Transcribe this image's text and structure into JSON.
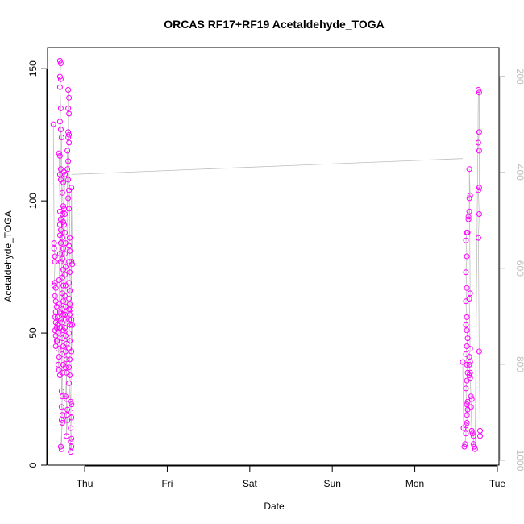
{
  "chart_data": {
    "type": "scatter",
    "title": "ORCAS RF17+RF19 Acetaldehyde_TOGA",
    "xlabel": "Date",
    "ylabel": "Acetaldehyde_TOGA",
    "x_ticks": [
      "Thu",
      "Fri",
      "Sat",
      "Sun",
      "Mon",
      "Tue"
    ],
    "xlim_days": [
      -0.45,
      5.02
    ],
    "ylim": [
      0,
      158
    ],
    "y_ticks": [
      0,
      50,
      100,
      150
    ],
    "y2_ticks": [
      200,
      400,
      600,
      800,
      1000
    ],
    "y2lim": [
      1010,
      140
    ],
    "grid": false,
    "point_color": "#ff00ff",
    "line_color": "#bdbdbd",
    "series": [
      {
        "values": [
          [
            -0.38,
            129
          ],
          [
            -0.37,
            84
          ],
          [
            -0.37,
            82
          ],
          [
            -0.36,
            79
          ],
          [
            -0.36,
            77
          ],
          [
            -0.37,
            68
          ],
          [
            -0.36,
            69
          ],
          [
            -0.35,
            67
          ],
          [
            -0.36,
            64
          ],
          [
            -0.35,
            62
          ],
          [
            -0.34,
            60
          ],
          [
            -0.35,
            58
          ],
          [
            -0.36,
            56
          ],
          [
            -0.35,
            54
          ],
          [
            -0.34,
            52
          ],
          [
            -0.36,
            51
          ],
          [
            -0.35,
            49
          ],
          [
            -0.34,
            47
          ],
          [
            -0.35,
            45
          ],
          [
            -0.33,
            56
          ],
          [
            -0.33,
            53
          ],
          [
            -0.32,
            50
          ],
          [
            -0.33,
            47
          ],
          [
            -0.32,
            44
          ],
          [
            -0.31,
            41
          ],
          [
            -0.32,
            38
          ],
          [
            -0.31,
            36
          ],
          [
            -0.3,
            34
          ],
          [
            -0.31,
            61
          ],
          [
            -0.3,
            58
          ],
          [
            -0.29,
            55
          ],
          [
            -0.3,
            52
          ],
          [
            -0.31,
            70
          ],
          [
            -0.3,
            96
          ],
          [
            -0.29,
            93
          ],
          [
            -0.3,
            91
          ],
          [
            -0.29,
            89
          ],
          [
            -0.3,
            87
          ],
          [
            -0.29,
            84
          ],
          [
            -0.3,
            80
          ],
          [
            -0.29,
            77
          ],
          [
            -0.31,
            118
          ],
          [
            -0.3,
            117
          ],
          [
            -0.29,
            112
          ],
          [
            -0.3,
            110
          ],
          [
            -0.29,
            108
          ],
          [
            -0.3,
            153
          ],
          [
            -0.29,
            152
          ],
          [
            -0.3,
            147
          ],
          [
            -0.29,
            146
          ],
          [
            -0.3,
            143
          ],
          [
            -0.29,
            135
          ],
          [
            -0.3,
            130
          ],
          [
            -0.29,
            127
          ],
          [
            -0.28,
            124
          ],
          [
            -0.28,
            28
          ],
          [
            -0.27,
            26
          ],
          [
            -0.28,
            22
          ],
          [
            -0.27,
            19
          ],
          [
            -0.28,
            17
          ],
          [
            -0.27,
            16
          ],
          [
            -0.29,
            7
          ],
          [
            -0.28,
            6
          ],
          [
            -0.27,
            35
          ],
          [
            -0.26,
            38
          ],
          [
            -0.27,
            42
          ],
          [
            -0.26,
            45
          ],
          [
            -0.27,
            48
          ],
          [
            -0.26,
            51
          ],
          [
            -0.27,
            54
          ],
          [
            -0.26,
            57
          ],
          [
            -0.27,
            59
          ],
          [
            -0.26,
            62
          ],
          [
            -0.27,
            65
          ],
          [
            -0.26,
            68
          ],
          [
            -0.27,
            71
          ],
          [
            -0.26,
            74
          ],
          [
            -0.27,
            78
          ],
          [
            -0.26,
            82
          ],
          [
            -0.27,
            86
          ],
          [
            -0.26,
            92
          ],
          [
            -0.27,
            95
          ],
          [
            -0.26,
            98
          ],
          [
            -0.27,
            103
          ],
          [
            -0.26,
            107
          ],
          [
            -0.25,
            111
          ],
          [
            -0.24,
            110
          ],
          [
            -0.25,
            97
          ],
          [
            -0.24,
            95
          ],
          [
            -0.25,
            91
          ],
          [
            -0.24,
            88
          ],
          [
            -0.23,
            84
          ],
          [
            -0.24,
            80
          ],
          [
            -0.23,
            75
          ],
          [
            -0.24,
            72
          ],
          [
            -0.23,
            68
          ],
          [
            -0.24,
            64
          ],
          [
            -0.23,
            60
          ],
          [
            -0.24,
            57
          ],
          [
            -0.23,
            55
          ],
          [
            -0.24,
            52
          ],
          [
            -0.23,
            49
          ],
          [
            -0.22,
            46
          ],
          [
            -0.23,
            43
          ],
          [
            -0.22,
            40
          ],
          [
            -0.23,
            37
          ],
          [
            -0.22,
            35
          ],
          [
            -0.23,
            26
          ],
          [
            -0.22,
            25
          ],
          [
            -0.21,
            21
          ],
          [
            -0.22,
            19
          ],
          [
            -0.21,
            17
          ],
          [
            -0.22,
            11
          ],
          [
            -0.21,
            119
          ],
          [
            -0.2,
            115
          ],
          [
            -0.21,
            112
          ],
          [
            -0.2,
            108
          ],
          [
            -0.19,
            104
          ],
          [
            -0.2,
            101
          ],
          [
            -0.19,
            97
          ],
          [
            -0.2,
            142
          ],
          [
            -0.19,
            139
          ],
          [
            -0.2,
            135
          ],
          [
            -0.19,
            133
          ],
          [
            -0.2,
            126
          ],
          [
            -0.19,
            125
          ],
          [
            -0.2,
            124
          ],
          [
            -0.19,
            122
          ],
          [
            -0.18,
            86
          ],
          [
            -0.19,
            83
          ],
          [
            -0.18,
            81
          ],
          [
            -0.19,
            77
          ],
          [
            -0.18,
            73
          ],
          [
            -0.19,
            69
          ],
          [
            -0.18,
            66
          ],
          [
            -0.19,
            63
          ],
          [
            -0.18,
            61
          ],
          [
            -0.19,
            59
          ],
          [
            -0.18,
            57
          ],
          [
            -0.19,
            55
          ],
          [
            -0.18,
            53
          ],
          [
            -0.19,
            50
          ],
          [
            -0.18,
            47
          ],
          [
            -0.19,
            44
          ],
          [
            -0.18,
            40
          ],
          [
            -0.19,
            37
          ],
          [
            -0.18,
            34
          ],
          [
            -0.19,
            31
          ],
          [
            -0.17,
            24
          ],
          [
            -0.16,
            23
          ],
          [
            -0.17,
            20
          ],
          [
            -0.16,
            18
          ],
          [
            -0.17,
            14
          ],
          [
            -0.16,
            10
          ],
          [
            -0.17,
            9
          ],
          [
            -0.16,
            7
          ],
          [
            -0.17,
            5
          ],
          [
            -0.16,
            77
          ],
          [
            -0.15,
            76
          ],
          [
            -0.16,
            105
          ],
          [
            -0.17,
            59
          ],
          [
            -0.16,
            55
          ],
          [
            -0.15,
            53
          ],
          [
            -0.16,
            43
          ],
          [
            4.58,
            39
          ],
          [
            4.59,
            14
          ],
          [
            4.6,
            7
          ],
          [
            4.61,
            8
          ],
          [
            4.62,
            12
          ],
          [
            4.62,
            15
          ],
          [
            4.63,
            16
          ],
          [
            4.63,
            23
          ],
          [
            4.64,
            24
          ],
          [
            4.64,
            21
          ],
          [
            4.63,
            19
          ],
          [
            4.62,
            29
          ],
          [
            4.63,
            32
          ],
          [
            4.64,
            35
          ],
          [
            4.63,
            38
          ],
          [
            4.62,
            42
          ],
          [
            4.63,
            45
          ],
          [
            4.64,
            48
          ],
          [
            4.63,
            51
          ],
          [
            4.62,
            53
          ],
          [
            4.63,
            56
          ],
          [
            4.62,
            62
          ],
          [
            4.63,
            67
          ],
          [
            4.62,
            73
          ],
          [
            4.63,
            79
          ],
          [
            4.62,
            85
          ],
          [
            4.63,
            88
          ],
          [
            4.64,
            88
          ],
          [
            4.65,
            94
          ],
          [
            4.65,
            93
          ],
          [
            4.66,
            96
          ],
          [
            4.66,
            101
          ],
          [
            4.67,
            102
          ],
          [
            4.66,
            112
          ],
          [
            4.67,
            65
          ],
          [
            4.66,
            63
          ],
          [
            4.67,
            44
          ],
          [
            4.66,
            41
          ],
          [
            4.67,
            39
          ],
          [
            4.66,
            38
          ],
          [
            4.67,
            35
          ],
          [
            4.66,
            34
          ],
          [
            4.67,
            33
          ],
          [
            4.68,
            26
          ],
          [
            4.69,
            25
          ],
          [
            4.68,
            22
          ],
          [
            4.69,
            13
          ],
          [
            4.7,
            12
          ],
          [
            4.71,
            11
          ],
          [
            4.71,
            8
          ],
          [
            4.72,
            7
          ],
          [
            4.73,
            6
          ],
          [
            4.77,
            142
          ],
          [
            4.78,
            141
          ],
          [
            4.78,
            126
          ],
          [
            4.77,
            122
          ],
          [
            4.78,
            119
          ],
          [
            4.78,
            105
          ],
          [
            4.77,
            104
          ],
          [
            4.78,
            95
          ],
          [
            4.77,
            86
          ],
          [
            4.78,
            43
          ],
          [
            4.79,
            13
          ],
          [
            4.79,
            11
          ]
        ]
      }
    ]
  }
}
